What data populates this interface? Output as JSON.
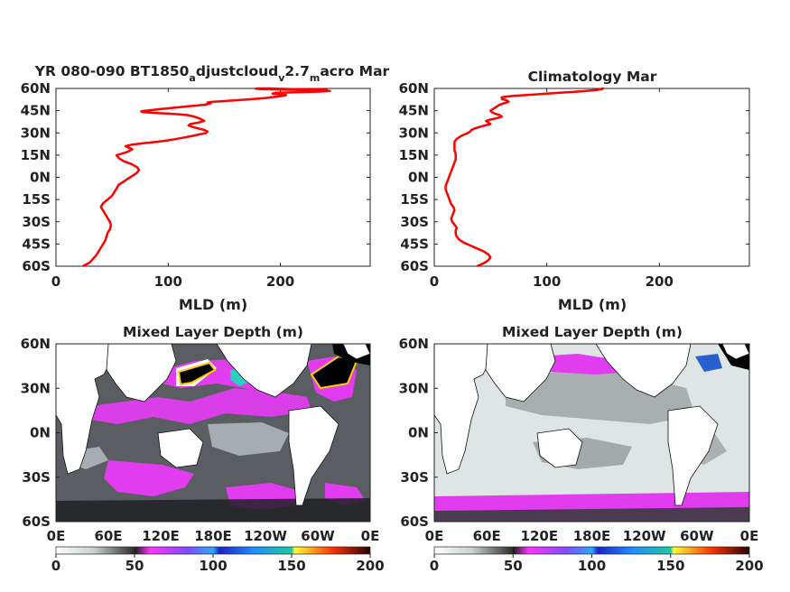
{
  "chart_data": [
    {
      "type": "line",
      "title_main": "YR 080-090 BT1850",
      "title_sub1": "a",
      "title_mid": "djustcloud",
      "title_sub2": "v",
      "title_mid2": "2.7",
      "title_sub3": "m",
      "title_end": "acro Mar",
      "xlabel": "MLD (m)",
      "xlim": [
        0,
        280
      ],
      "ylim": [
        -60,
        60
      ],
      "x_ticks": [
        "0",
        "100",
        "200"
      ],
      "y_ticks": [
        "60N",
        "45N",
        "30N",
        "15N",
        "0N",
        "15S",
        "30S",
        "45S",
        "60S"
      ],
      "color": "#ff0000",
      "series": [
        {
          "x": [
            24,
            30,
            33,
            36,
            38,
            40,
            42,
            44,
            45,
            46,
            48,
            49,
            48,
            46,
            44,
            42,
            40,
            42,
            46,
            50,
            52,
            54,
            56,
            60,
            64,
            68,
            72,
            74,
            72,
            67,
            60,
            56,
            54,
            59,
            63,
            66,
            68,
            65,
            62,
            67,
            78,
            90,
            100,
            108,
            115,
            122,
            128,
            134,
            135,
            132,
            127,
            122,
            118,
            120,
            127,
            132,
            130,
            127,
            123,
            117,
            110,
            100,
            88,
            78,
            76,
            80,
            92,
            106,
            118,
            126,
            132,
            136,
            138,
            135,
            140,
            150,
            160,
            170,
            178,
            186,
            192,
            198,
            202,
            205,
            200,
            193,
            196,
            210,
            225,
            238,
            244,
            236,
            215,
            195,
            182,
            178,
            180,
            190,
            210,
            235,
            242
          ],
          "y": [
            -60,
            -57.5,
            -55,
            -52.5,
            -50,
            -47.5,
            -45,
            -42.5,
            -40,
            -37.5,
            -35,
            -32.5,
            -30,
            -27.5,
            -25,
            -22.5,
            -20,
            -17.5,
            -15,
            -12.5,
            -10,
            -7.5,
            -5,
            -3,
            -1,
            1,
            3,
            5,
            7,
            9,
            11,
            13,
            15,
            16,
            17,
            18,
            19,
            20,
            21,
            22,
            23,
            24,
            25,
            26,
            27,
            28,
            29,
            30,
            31,
            32,
            33,
            34,
            35,
            36,
            37,
            38,
            39,
            40,
            41,
            42,
            42.5,
            43,
            43.5,
            44,
            44.5,
            45,
            46,
            47,
            48,
            48.5,
            49,
            49.5,
            50,
            50.5,
            51,
            51.5,
            52,
            52.5,
            53,
            53.5,
            54,
            54.5,
            55,
            55.5,
            56,
            56.5,
            57,
            57.3,
            57.6,
            58,
            58.3,
            58.6,
            59,
            59.3,
            59.6,
            59.8,
            60,
            60,
            59.5,
            59.2,
            59
          ]
        }
      ]
    },
    {
      "type": "line",
      "title": "Climatology Mar",
      "xlabel": "MLD (m)",
      "xlim": [
        0,
        280
      ],
      "ylim": [
        -60,
        60
      ],
      "x_ticks": [
        "0",
        "100",
        "200"
      ],
      "y_ticks": [
        "60N",
        "45N",
        "30N",
        "15N",
        "0N",
        "15S",
        "30S",
        "45S",
        "60S"
      ],
      "color": "#ff0000",
      "series": [
        {
          "x": [
            38,
            44,
            48,
            50,
            48,
            44,
            38,
            32,
            26,
            22,
            20,
            19,
            19,
            20,
            18,
            16,
            15,
            16,
            17,
            18,
            17,
            15,
            14,
            13,
            12,
            11,
            10,
            10,
            11,
            12,
            13,
            14,
            15,
            16,
            17,
            18,
            19,
            19,
            19,
            18,
            18,
            18,
            18,
            20,
            22,
            24,
            27,
            30,
            32,
            33,
            36,
            40,
            45,
            50,
            48,
            46,
            50,
            56,
            60,
            58,
            54,
            51,
            50,
            52,
            54,
            56,
            58,
            62,
            66,
            64,
            60,
            60,
            70,
            90,
            110,
            130,
            145,
            150,
            148
          ],
          "y": [
            -60,
            -58,
            -56,
            -54,
            -52,
            -50,
            -48,
            -46,
            -44,
            -42,
            -40,
            -38,
            -36,
            -34,
            -32,
            -30,
            -28,
            -26,
            -24,
            -22,
            -20,
            -18,
            -16,
            -14,
            -12,
            -10,
            -8,
            -6,
            -4,
            -2,
            0,
            2,
            4,
            6,
            8,
            10,
            12,
            14,
            16,
            18,
            20,
            22,
            24,
            26,
            27,
            28,
            29,
            30,
            31,
            32,
            33,
            34,
            35,
            36,
            37,
            38,
            39,
            40,
            41,
            42,
            43,
            44,
            45,
            46,
            47,
            48,
            49,
            50,
            51,
            52,
            53,
            54,
            55,
            56,
            57,
            58,
            59,
            60,
            59
          ]
        }
      ]
    },
    {
      "type": "heatmap",
      "title": "Mixed Layer Depth (m)",
      "y_ticks": [
        "60N",
        "30N",
        "0N",
        "30S",
        "60S"
      ],
      "x_ticks": [
        "0E",
        "60E",
        "120E",
        "180E",
        "120W",
        "60W",
        "0E"
      ],
      "colorbar_ticks": [
        "0",
        "50",
        "100",
        "150",
        "200"
      ],
      "colorbar_range": [
        0,
        200
      ]
    },
    {
      "type": "heatmap",
      "title": "Mixed Layer Depth (m)",
      "y_ticks": [
        "60N",
        "30N",
        "0N",
        "30S",
        "60S"
      ],
      "x_ticks": [
        "0E",
        "60E",
        "120E",
        "180E",
        "120W",
        "60W",
        "0E"
      ],
      "colorbar_ticks": [
        "0",
        "50",
        "100",
        "150",
        "200"
      ],
      "colorbar_range": [
        0,
        200
      ]
    }
  ]
}
